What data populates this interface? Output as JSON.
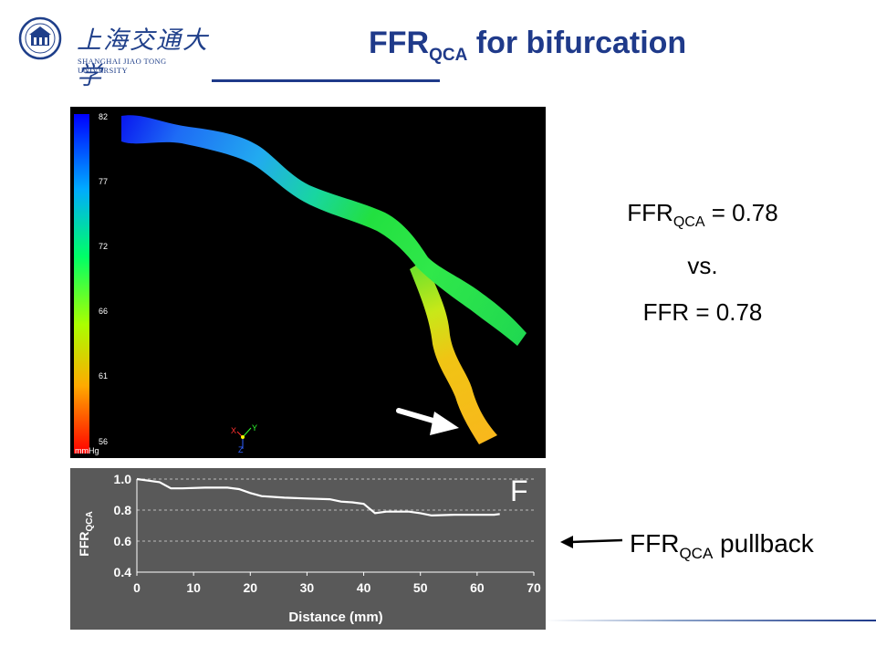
{
  "header": {
    "logo_cn": "上海交通大学",
    "logo_en": "SHANGHAI JIAO TONG UNIVERSITY",
    "title_main": "FFR",
    "title_sub": "QCA",
    "title_rest": " for bifurcation"
  },
  "colorbar": {
    "ticks": [
      "82",
      "77",
      "72",
      "66",
      "61",
      "56"
    ],
    "unit": "mmHg",
    "axes": [
      "X",
      "Y",
      "Z"
    ]
  },
  "comparison": {
    "line1_main": "FFR",
    "line1_sub": "QCA",
    "line1_rest": " = 0.78",
    "line2": "vs.",
    "line3": "FFR = 0.78"
  },
  "annotation": {
    "pullback_main": "FFR",
    "pullback_sub": "QCA",
    "pullback_rest": " pullback"
  },
  "colors": {
    "title": "#1f3a8a",
    "chart_bg": "#595959",
    "curve": "#ffffff"
  },
  "chart_data": {
    "type": "line",
    "panel_label": "F",
    "xlabel": "Distance (mm)",
    "ylabel_main": "FFR",
    "ylabel_sub": "QCA",
    "xlim": [
      0,
      70
    ],
    "ylim": [
      0.4,
      1.0
    ],
    "x_ticks": [
      "0",
      "10",
      "20",
      "30",
      "40",
      "50",
      "60",
      "70"
    ],
    "y_ticks": [
      "1.0",
      "0.8",
      "0.6",
      "0.4"
    ],
    "grid": "horizontal dashed",
    "series": [
      {
        "x": [
          0,
          2,
          4,
          6,
          8,
          12,
          16,
          18,
          20,
          22,
          26,
          30,
          34,
          36,
          38,
          40,
          41,
          42,
          44,
          48,
          50,
          52,
          56,
          60,
          63,
          64
        ],
        "values": [
          1.0,
          0.99,
          0.98,
          0.94,
          0.94,
          0.945,
          0.945,
          0.935,
          0.91,
          0.89,
          0.88,
          0.875,
          0.87,
          0.855,
          0.85,
          0.84,
          0.81,
          0.78,
          0.79,
          0.79,
          0.78,
          0.765,
          0.77,
          0.77,
          0.77,
          0.775
        ]
      }
    ]
  }
}
